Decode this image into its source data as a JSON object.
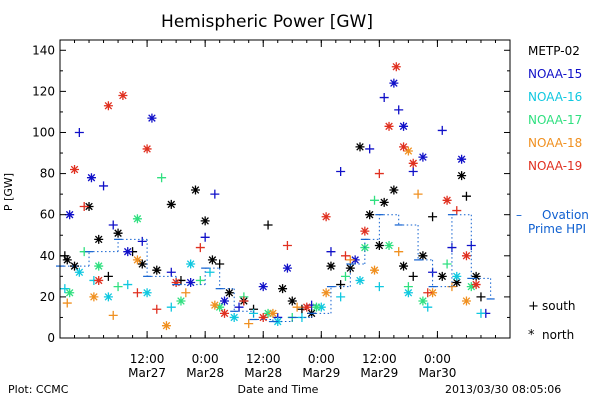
{
  "chart_data": {
    "type": "scatter",
    "title": "Hemispheric Power [GW]",
    "ylabel": "P [GW]",
    "xlabel": "Date and Time",
    "ylim": [
      0,
      145
    ],
    "xlim": [
      "2013-03-26T18:00",
      "2013-03-30T15:00"
    ],
    "yticks": [
      0,
      20,
      40,
      60,
      80,
      100,
      120,
      140
    ],
    "xticks": [
      {
        "time": "2013-03-27T12:00",
        "line1": "12:00",
        "line2": "Mar27"
      },
      {
        "time": "2013-03-28T00:00",
        "line1": "0:00",
        "line2": "Mar28"
      },
      {
        "time": "2013-03-28T12:00",
        "line1": "12:00",
        "line2": "Mar28"
      },
      {
        "time": "2013-03-29T00:00",
        "line1": "0:00",
        "line2": "Mar29"
      },
      {
        "time": "2013-03-29T12:00",
        "line1": "12:00",
        "line2": "Mar29"
      },
      {
        "time": "2013-03-30T00:00",
        "line1": "0:00",
        "line2": "Mar30"
      }
    ],
    "grid": false,
    "legend_position": "right",
    "series": [
      {
        "name": "METP-02",
        "color": "#000000",
        "points": [
          [
            "2013-03-26T19:00",
            40,
            "+"
          ],
          [
            "2013-03-26T19:30",
            38,
            "*"
          ],
          [
            "2013-03-26T21:00",
            35,
            "*"
          ],
          [
            "2013-03-27T00:00",
            64,
            "*"
          ],
          [
            "2013-03-27T02:00",
            48,
            "*"
          ],
          [
            "2013-03-27T04:00",
            30,
            "+"
          ],
          [
            "2013-03-27T06:00",
            51,
            "*"
          ],
          [
            "2013-03-27T09:00",
            42,
            "+"
          ],
          [
            "2013-03-27T11:00",
            36,
            "*"
          ],
          [
            "2013-03-27T14:00",
            33,
            "*"
          ],
          [
            "2013-03-27T17:00",
            65,
            "*"
          ],
          [
            "2013-03-27T19:00",
            28,
            "+"
          ],
          [
            "2013-03-27T22:00",
            72,
            "*"
          ],
          [
            "2013-03-28T00:00",
            57,
            "*"
          ],
          [
            "2013-03-28T01:30",
            38,
            "*"
          ],
          [
            "2013-03-28T03:00",
            36,
            "+"
          ],
          [
            "2013-03-28T05:00",
            22,
            "*"
          ],
          [
            "2013-03-28T08:00",
            18,
            "*"
          ],
          [
            "2013-03-28T10:00",
            14,
            "+"
          ],
          [
            "2013-03-28T13:00",
            55,
            "+"
          ],
          [
            "2013-03-28T16:00",
            24,
            "*"
          ],
          [
            "2013-03-28T18:00",
            18,
            "*"
          ],
          [
            "2013-03-28T20:00",
            14,
            "+"
          ],
          [
            "2013-03-28T22:00",
            12,
            "*"
          ],
          [
            "2013-03-29T02:00",
            35,
            "*"
          ],
          [
            "2013-03-29T04:00",
            26,
            "+"
          ],
          [
            "2013-03-29T06:00",
            34,
            "*"
          ],
          [
            "2013-03-29T08:00",
            93,
            "*"
          ],
          [
            "2013-03-29T10:00",
            60,
            "*"
          ],
          [
            "2013-03-29T12:00",
            45,
            "*"
          ],
          [
            "2013-03-29T13:00",
            66,
            "*"
          ],
          [
            "2013-03-29T15:00",
            72,
            "*"
          ],
          [
            "2013-03-29T17:00",
            35,
            "*"
          ],
          [
            "2013-03-29T19:00",
            30,
            "+"
          ],
          [
            "2013-03-29T21:00",
            40,
            "*"
          ],
          [
            "2013-03-29T23:00",
            59,
            "+"
          ],
          [
            "2013-03-30T01:00",
            30,
            "*"
          ],
          [
            "2013-03-30T04:00",
            27,
            "*"
          ],
          [
            "2013-03-30T05:00",
            79,
            "*"
          ],
          [
            "2013-03-30T06:00",
            69,
            "+"
          ],
          [
            "2013-03-30T08:00",
            30,
            "*"
          ],
          [
            "2013-03-30T09:00",
            20,
            "+"
          ]
        ]
      },
      {
        "name": "NOAA-15",
        "color": "#1010c8",
        "points": [
          [
            "2013-03-26T20:00",
            60,
            "*"
          ],
          [
            "2013-03-26T22:00",
            100,
            "+"
          ],
          [
            "2013-03-27T00:30",
            78,
            "*"
          ],
          [
            "2013-03-27T03:00",
            74,
            "+"
          ],
          [
            "2013-03-27T05:00",
            55,
            "+"
          ],
          [
            "2013-03-27T08:00",
            42,
            "*"
          ],
          [
            "2013-03-27T11:00",
            47,
            "+"
          ],
          [
            "2013-03-27T13:00",
            107,
            "*"
          ],
          [
            "2013-03-27T17:00",
            32,
            "+"
          ],
          [
            "2013-03-27T21:00",
            27,
            "*"
          ],
          [
            "2013-03-28T00:00",
            49,
            "+"
          ],
          [
            "2013-03-28T02:00",
            70,
            "+"
          ],
          [
            "2013-03-28T04:00",
            18,
            "*"
          ],
          [
            "2013-03-28T07:00",
            15,
            "+"
          ],
          [
            "2013-03-28T12:00",
            25,
            "*"
          ],
          [
            "2013-03-28T15:00",
            10,
            "+"
          ],
          [
            "2013-03-28T17:00",
            34,
            "*"
          ],
          [
            "2013-03-28T22:00",
            16,
            "+"
          ],
          [
            "2013-03-29T02:00",
            42,
            "+"
          ],
          [
            "2013-03-29T04:00",
            81,
            "+"
          ],
          [
            "2013-03-29T07:00",
            38,
            "*"
          ],
          [
            "2013-03-29T10:00",
            92,
            "+"
          ],
          [
            "2013-03-29T13:00",
            117,
            "+"
          ],
          [
            "2013-03-29T15:00",
            124,
            "*"
          ],
          [
            "2013-03-29T16:00",
            111,
            "+"
          ],
          [
            "2013-03-29T17:00",
            103,
            "*"
          ],
          [
            "2013-03-29T19:00",
            81,
            "+"
          ],
          [
            "2013-03-29T21:00",
            88,
            "*"
          ],
          [
            "2013-03-29T23:00",
            32,
            "+"
          ],
          [
            "2013-03-30T01:00",
            101,
            "+"
          ],
          [
            "2013-03-30T03:00",
            44,
            "+"
          ],
          [
            "2013-03-30T05:00",
            87,
            "*"
          ],
          [
            "2013-03-30T07:00",
            45,
            "+"
          ],
          [
            "2013-03-30T10:00",
            12,
            "+"
          ]
        ]
      },
      {
        "name": "NOAA-16",
        "color": "#10c8e0",
        "points": [
          [
            "2013-03-26T19:00",
            24,
            "+"
          ],
          [
            "2013-03-26T22:00",
            32,
            "*"
          ],
          [
            "2013-03-27T01:00",
            28,
            "+"
          ],
          [
            "2013-03-27T04:00",
            20,
            "*"
          ],
          [
            "2013-03-27T08:00",
            26,
            "+"
          ],
          [
            "2013-03-27T12:00",
            22,
            "*"
          ],
          [
            "2013-03-27T17:00",
            15,
            "+"
          ],
          [
            "2013-03-27T21:00",
            36,
            "*"
          ],
          [
            "2013-03-28T01:00",
            32,
            "+"
          ],
          [
            "2013-03-28T06:00",
            10,
            "*"
          ],
          [
            "2013-03-28T10:00",
            12,
            "+"
          ],
          [
            "2013-03-28T15:00",
            8,
            "*"
          ],
          [
            "2013-03-28T20:00",
            10,
            "+"
          ],
          [
            "2013-03-29T00:00",
            15,
            "*"
          ],
          [
            "2013-03-29T04:00",
            20,
            "+"
          ],
          [
            "2013-03-29T08:00",
            28,
            "*"
          ],
          [
            "2013-03-29T12:00",
            25,
            "+"
          ],
          [
            "2013-03-29T18:00",
            22,
            "*"
          ],
          [
            "2013-03-29T22:00",
            15,
            "+"
          ],
          [
            "2013-03-30T04:00",
            30,
            "*"
          ],
          [
            "2013-03-30T09:00",
            12,
            "+"
          ]
        ]
      },
      {
        "name": "NOAA-17",
        "color": "#30e080",
        "points": [
          [
            "2013-03-26T20:00",
            22,
            "*"
          ],
          [
            "2013-03-26T23:00",
            42,
            "+"
          ],
          [
            "2013-03-27T02:00",
            35,
            "*"
          ],
          [
            "2013-03-27T06:00",
            25,
            "+"
          ],
          [
            "2013-03-27T10:00",
            58,
            "*"
          ],
          [
            "2013-03-27T15:00",
            78,
            "+"
          ],
          [
            "2013-03-27T19:00",
            18,
            "*"
          ],
          [
            "2013-03-27T23:00",
            28,
            "+"
          ],
          [
            "2013-03-28T03:00",
            15,
            "*"
          ],
          [
            "2013-03-28T08:00",
            20,
            "+"
          ],
          [
            "2013-03-28T13:00",
            12,
            "*"
          ],
          [
            "2013-03-28T18:00",
            10,
            "+"
          ],
          [
            "2013-03-28T23:00",
            15,
            "*"
          ],
          [
            "2013-03-29T05:00",
            30,
            "+"
          ],
          [
            "2013-03-29T09:00",
            44,
            "*"
          ],
          [
            "2013-03-29T11:00",
            67,
            "+"
          ],
          [
            "2013-03-29T14:00",
            45,
            "*"
          ],
          [
            "2013-03-29T18:00",
            25,
            "+"
          ],
          [
            "2013-03-29T21:00",
            18,
            "*"
          ],
          [
            "2013-03-30T02:00",
            36,
            "+"
          ],
          [
            "2013-03-30T07:00",
            25,
            "*"
          ]
        ]
      },
      {
        "name": "NOAA-18",
        "color": "#f09020",
        "points": [
          [
            "2013-03-26T19:30",
            17,
            "+"
          ],
          [
            "2013-03-27T01:00",
            20,
            "*"
          ],
          [
            "2013-03-27T05:00",
            11,
            "+"
          ],
          [
            "2013-03-27T10:00",
            38,
            "*"
          ],
          [
            "2013-03-27T16:00",
            6,
            "*"
          ],
          [
            "2013-03-27T20:00",
            22,
            "+"
          ],
          [
            "2013-03-28T02:00",
            16,
            "*"
          ],
          [
            "2013-03-28T09:00",
            7,
            "+"
          ],
          [
            "2013-03-28T14:00",
            12,
            "*"
          ],
          [
            "2013-03-28T19:00",
            15,
            "+"
          ],
          [
            "2013-03-29T01:00",
            22,
            "*"
          ],
          [
            "2013-03-29T06:00",
            38,
            "+"
          ],
          [
            "2013-03-29T11:00",
            33,
            "*"
          ],
          [
            "2013-03-29T16:00",
            42,
            "+"
          ],
          [
            "2013-03-29T18:00",
            91,
            "*"
          ],
          [
            "2013-03-29T20:00",
            70,
            "+"
          ],
          [
            "2013-03-29T23:00",
            22,
            "*"
          ],
          [
            "2013-03-30T03:00",
            25,
            "+"
          ],
          [
            "2013-03-30T06:00",
            18,
            "*"
          ]
        ]
      },
      {
        "name": "NOAA-19",
        "color": "#e03020",
        "points": [
          [
            "2013-03-26T21:00",
            82,
            "*"
          ],
          [
            "2013-03-26T23:00",
            64,
            "+"
          ],
          [
            "2013-03-27T02:00",
            28,
            "*"
          ],
          [
            "2013-03-27T04:00",
            113,
            "*"
          ],
          [
            "2013-03-27T07:00",
            118,
            "*"
          ],
          [
            "2013-03-27T10:00",
            22,
            "+"
          ],
          [
            "2013-03-27T12:00",
            92,
            "*"
          ],
          [
            "2013-03-27T14:00",
            14,
            "+"
          ],
          [
            "2013-03-27T18:00",
            27,
            "*"
          ],
          [
            "2013-03-27T23:00",
            44,
            "+"
          ],
          [
            "2013-03-28T04:00",
            12,
            "*"
          ],
          [
            "2013-03-28T08:00",
            18,
            "+"
          ],
          [
            "2013-03-28T12:00",
            10,
            "*"
          ],
          [
            "2013-03-28T17:00",
            45,
            "+"
          ],
          [
            "2013-03-28T21:00",
            15,
            "*"
          ],
          [
            "2013-03-29T01:00",
            59,
            "*"
          ],
          [
            "2013-03-29T05:00",
            40,
            "+"
          ],
          [
            "2013-03-29T09:00",
            52,
            "*"
          ],
          [
            "2013-03-29T12:00",
            80,
            "+"
          ],
          [
            "2013-03-29T14:00",
            103,
            "*"
          ],
          [
            "2013-03-29T15:30",
            132,
            "*"
          ],
          [
            "2013-03-29T17:00",
            93,
            "*"
          ],
          [
            "2013-03-29T19:00",
            85,
            "*"
          ],
          [
            "2013-03-29T22:00",
            22,
            "+"
          ],
          [
            "2013-03-30T02:00",
            67,
            "*"
          ],
          [
            "2013-03-30T04:00",
            62,
            "+"
          ],
          [
            "2013-03-30T06:00",
            40,
            "*"
          ],
          [
            "2013-03-30T08:00",
            26,
            "*"
          ]
        ]
      },
      {
        "name": "Ovation Prime HPI",
        "color": "#1060d0",
        "style": "dotted-step",
        "points": [
          [
            "2013-03-26T18:00",
            35
          ],
          [
            "2013-03-27T00:00",
            42
          ],
          [
            "2013-03-27T06:00",
            48
          ],
          [
            "2013-03-27T12:00",
            30
          ],
          [
            "2013-03-27T18:00",
            26
          ],
          [
            "2013-03-28T00:00",
            34
          ],
          [
            "2013-03-28T03:00",
            24
          ],
          [
            "2013-03-28T06:00",
            13
          ],
          [
            "2013-03-28T10:00",
            9
          ],
          [
            "2013-03-28T14:00",
            8
          ],
          [
            "2013-03-28T18:00",
            10
          ],
          [
            "2013-03-28T22:00",
            12
          ],
          [
            "2013-03-29T02:00",
            25
          ],
          [
            "2013-03-29T06:00",
            36
          ],
          [
            "2013-03-29T09:00",
            48
          ],
          [
            "2013-03-29T12:00",
            60
          ],
          [
            "2013-03-29T16:00",
            55
          ],
          [
            "2013-03-29T20:00",
            38
          ],
          [
            "2013-03-29T23:00",
            25
          ],
          [
            "2013-03-30T03:00",
            60
          ],
          [
            "2013-03-30T07:00",
            29
          ],
          [
            "2013-03-30T11:00",
            19
          ]
        ]
      }
    ],
    "marker_legend": [
      {
        "symbol": "+",
        "label": "south"
      },
      {
        "symbol": "*",
        "label": "north"
      }
    ],
    "ovation_legend": {
      "dash": "–",
      "line1": "Ovation",
      "line2": "Prime HPI"
    },
    "footer_left": "Plot: CCMC",
    "footer_right": "2013/03/30 08:05:06"
  }
}
